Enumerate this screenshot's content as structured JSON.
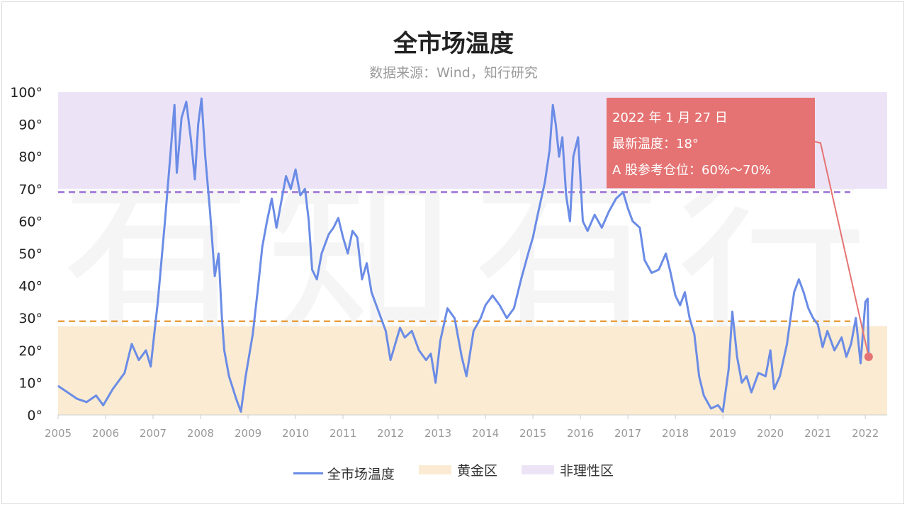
{
  "chart_data": {
    "type": "line",
    "title": "全市场温度",
    "subtitle": "数据来源：Wind，知行研究",
    "watermark": "有知有行",
    "ylim": [
      0,
      100
    ],
    "y_ticks": [
      "0°",
      "10°",
      "20°",
      "30°",
      "40°",
      "50°",
      "60°",
      "70°",
      "80°",
      "90°",
      "100°"
    ],
    "xlim": [
      2005,
      2022.46
    ],
    "x_ticks": [
      "2005",
      "2006",
      "2007",
      "2008",
      "2009",
      "2010",
      "2011",
      "2012",
      "2013",
      "2014",
      "2015",
      "2016",
      "2017",
      "2018",
      "2019",
      "2020",
      "2021",
      "2022"
    ],
    "zones": [
      {
        "name": "黄金区",
        "from": 0,
        "to": 27.5,
        "color": "#faebd2"
      },
      {
        "name": "非理性区",
        "from": 70,
        "to": 100,
        "color": "#ece4f6"
      }
    ],
    "threshold_lines": [
      {
        "value": 29,
        "color": "#e8a040"
      },
      {
        "value": 69,
        "color": "#9b6fd6"
      }
    ],
    "series": [
      {
        "name": "全市场温度",
        "color": "#6b8ce6",
        "points": [
          [
            2005.0,
            9
          ],
          [
            2005.2,
            7
          ],
          [
            2005.4,
            5
          ],
          [
            2005.6,
            4
          ],
          [
            2005.8,
            6
          ],
          [
            2005.95,
            3
          ],
          [
            2006.15,
            8
          ],
          [
            2006.4,
            13
          ],
          [
            2006.55,
            22
          ],
          [
            2006.7,
            17
          ],
          [
            2006.85,
            20
          ],
          [
            2006.95,
            15
          ],
          [
            2007.1,
            35
          ],
          [
            2007.25,
            60
          ],
          [
            2007.35,
            78
          ],
          [
            2007.45,
            96
          ],
          [
            2007.5,
            75
          ],
          [
            2007.6,
            92
          ],
          [
            2007.7,
            97
          ],
          [
            2007.8,
            85
          ],
          [
            2007.88,
            73
          ],
          [
            2007.95,
            90
          ],
          [
            2008.02,
            98
          ],
          [
            2008.1,
            80
          ],
          [
            2008.2,
            63
          ],
          [
            2008.3,
            43
          ],
          [
            2008.38,
            50
          ],
          [
            2008.45,
            30
          ],
          [
            2008.5,
            20
          ],
          [
            2008.6,
            12
          ],
          [
            2008.75,
            5
          ],
          [
            2008.85,
            1
          ],
          [
            2008.95,
            12
          ],
          [
            2009.1,
            25
          ],
          [
            2009.2,
            38
          ],
          [
            2009.3,
            52
          ],
          [
            2009.4,
            60
          ],
          [
            2009.5,
            67
          ],
          [
            2009.6,
            58
          ],
          [
            2009.7,
            66
          ],
          [
            2009.8,
            74
          ],
          [
            2009.9,
            70
          ],
          [
            2010.0,
            76
          ],
          [
            2010.1,
            68
          ],
          [
            2010.2,
            70
          ],
          [
            2010.28,
            60
          ],
          [
            2010.35,
            45
          ],
          [
            2010.45,
            42
          ],
          [
            2010.55,
            50
          ],
          [
            2010.7,
            56
          ],
          [
            2010.8,
            58
          ],
          [
            2010.9,
            61
          ],
          [
            2011.0,
            55
          ],
          [
            2011.1,
            50
          ],
          [
            2011.2,
            57
          ],
          [
            2011.3,
            55
          ],
          [
            2011.4,
            42
          ],
          [
            2011.5,
            47
          ],
          [
            2011.6,
            38
          ],
          [
            2011.7,
            34
          ],
          [
            2011.8,
            30
          ],
          [
            2011.9,
            26
          ],
          [
            2012.0,
            17
          ],
          [
            2012.1,
            22
          ],
          [
            2012.2,
            27
          ],
          [
            2012.3,
            24
          ],
          [
            2012.45,
            26
          ],
          [
            2012.6,
            20
          ],
          [
            2012.75,
            17
          ],
          [
            2012.85,
            19
          ],
          [
            2012.95,
            10
          ],
          [
            2013.05,
            23
          ],
          [
            2013.2,
            33
          ],
          [
            2013.35,
            30
          ],
          [
            2013.5,
            18
          ],
          [
            2013.6,
            12
          ],
          [
            2013.75,
            26
          ],
          [
            2013.9,
            30
          ],
          [
            2014.0,
            34
          ],
          [
            2014.15,
            37
          ],
          [
            2014.3,
            34
          ],
          [
            2014.45,
            30
          ],
          [
            2014.6,
            33
          ],
          [
            2014.75,
            42
          ],
          [
            2014.9,
            50
          ],
          [
            2015.0,
            55
          ],
          [
            2015.1,
            62
          ],
          [
            2015.25,
            72
          ],
          [
            2015.35,
            82
          ],
          [
            2015.42,
            96
          ],
          [
            2015.48,
            90
          ],
          [
            2015.55,
            80
          ],
          [
            2015.62,
            86
          ],
          [
            2015.7,
            68
          ],
          [
            2015.78,
            60
          ],
          [
            2015.85,
            80
          ],
          [
            2015.95,
            86
          ],
          [
            2016.05,
            60
          ],
          [
            2016.15,
            57
          ],
          [
            2016.3,
            62
          ],
          [
            2016.45,
            58
          ],
          [
            2016.6,
            63
          ],
          [
            2016.75,
            67
          ],
          [
            2016.9,
            69
          ],
          [
            2017.0,
            64
          ],
          [
            2017.1,
            60
          ],
          [
            2017.25,
            58
          ],
          [
            2017.35,
            48
          ],
          [
            2017.5,
            44
          ],
          [
            2017.65,
            45
          ],
          [
            2017.8,
            50
          ],
          [
            2017.9,
            44
          ],
          [
            2018.0,
            37
          ],
          [
            2018.1,
            34
          ],
          [
            2018.2,
            38
          ],
          [
            2018.3,
            30
          ],
          [
            2018.4,
            25
          ],
          [
            2018.5,
            12
          ],
          [
            2018.6,
            6
          ],
          [
            2018.75,
            2
          ],
          [
            2018.9,
            3
          ],
          [
            2019.0,
            1
          ],
          [
            2019.12,
            14
          ],
          [
            2019.2,
            32
          ],
          [
            2019.3,
            18
          ],
          [
            2019.4,
            10
          ],
          [
            2019.5,
            12
          ],
          [
            2019.6,
            7
          ],
          [
            2019.75,
            13
          ],
          [
            2019.9,
            12
          ],
          [
            2020.0,
            20
          ],
          [
            2020.08,
            8
          ],
          [
            2020.2,
            12
          ],
          [
            2020.35,
            22
          ],
          [
            2020.5,
            38
          ],
          [
            2020.6,
            42
          ],
          [
            2020.7,
            38
          ],
          [
            2020.8,
            33
          ],
          [
            2020.9,
            30
          ],
          [
            2021.0,
            28
          ],
          [
            2021.1,
            21
          ],
          [
            2021.2,
            26
          ],
          [
            2021.35,
            20
          ],
          [
            2021.5,
            24
          ],
          [
            2021.6,
            18
          ],
          [
            2021.7,
            22
          ],
          [
            2021.8,
            30
          ],
          [
            2021.9,
            16
          ],
          [
            2022.0,
            35
          ],
          [
            2022.05,
            36
          ],
          [
            2022.07,
            18
          ]
        ]
      }
    ],
    "highlight_point": {
      "x": 2022.07,
      "y": 18,
      "color": "#e57373"
    },
    "tooltip": {
      "date": "2022 年 1 月 27 日",
      "temperature": "最新温度：18°",
      "position": "A 股参考仓位：60%～70%"
    },
    "legend": {
      "placement": "bottom-center",
      "items": [
        {
          "label": "全市场温度",
          "color": "#6b8ce6",
          "kind": "line"
        },
        {
          "label": "黄金区",
          "color": "#faebd2",
          "kind": "box"
        },
        {
          "label": "非理性区",
          "color": "#ece4f6",
          "kind": "box"
        }
      ]
    }
  }
}
